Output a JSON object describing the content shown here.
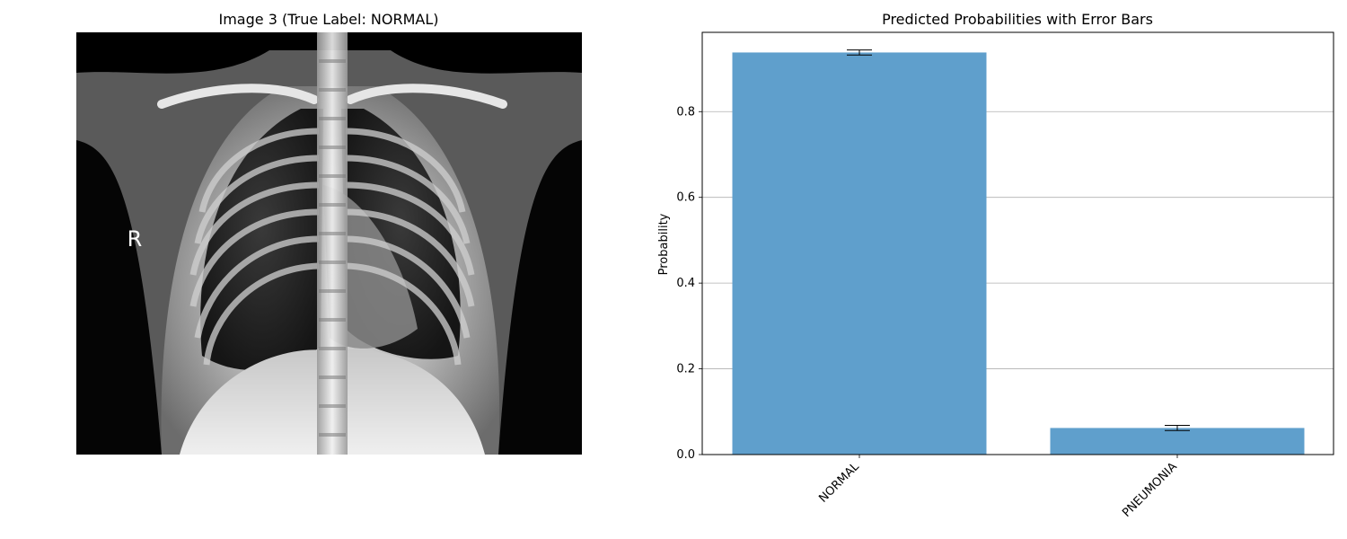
{
  "xray": {
    "title": "Image 3 (True Label: NORMAL)",
    "marker": "R"
  },
  "chart_data": {
    "type": "bar",
    "title": "Predicted Probabilities with Error Bars",
    "xlabel": "",
    "ylabel": "Probability",
    "categories": [
      "NORMAL",
      "PNEUMONIA"
    ],
    "values": [
      0.938,
      0.062
    ],
    "errors": [
      0.006,
      0.006
    ],
    "ylim": [
      0,
      0.985
    ],
    "yticks": [
      0.0,
      0.2,
      0.4,
      0.6,
      0.8
    ],
    "ytick_labels": [
      "0.0",
      "0.2",
      "0.4",
      "0.6",
      "0.8"
    ],
    "grid": "horizontal",
    "bar_color": "#5f9fcc",
    "error_color": "#000000"
  }
}
